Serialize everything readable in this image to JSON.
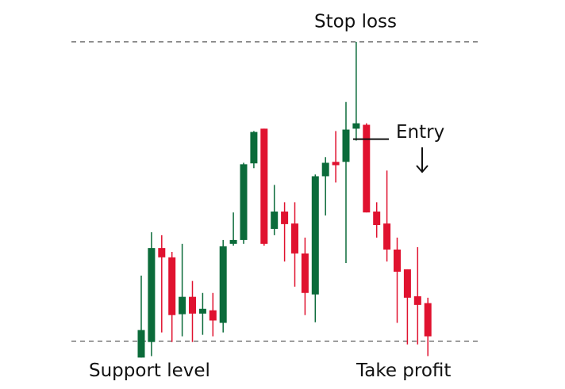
{
  "chart_data": {
    "type": "candlestick",
    "open": [
      -5.5,
      -0.3,
      31.1,
      28.0,
      9.0,
      14.8,
      9.2,
      10.3,
      6.1,
      32.5,
      33.8,
      59.4,
      71.0,
      37.5,
      43.3,
      39.3,
      29.3,
      15.6,
      55.1,
      59.9,
      59.9,
      71.0,
      72.3,
      43.3,
      39.3,
      30.6,
      24.0,
      15.0,
      12.7
    ],
    "high": [
      21.9,
      36.4,
      35.4,
      29.8,
      32.5,
      20.1,
      16.1,
      16.1,
      33.8,
      43.0,
      59.6,
      70.2,
      71.0,
      52.2,
      46.4,
      46.4,
      34.6,
      55.7,
      61.5,
      70.2,
      79.9,
      100,
      72.8,
      46.4,
      57.0,
      34.6,
      24.0,
      31.4,
      14.5
    ],
    "low": [
      -5.5,
      -5.0,
      2.9,
      -0.3,
      1.6,
      -0.3,
      2.1,
      1.6,
      2.9,
      31.9,
      32.5,
      57.8,
      31.9,
      35.4,
      26.6,
      18.2,
      8.7,
      6.3,
      42.0,
      53.0,
      26.1,
      67.0,
      43.0,
      34.6,
      26.6,
      6.1,
      -1.1,
      -1.1,
      -5.0
    ],
    "close": [
      3.7,
      31.1,
      28.0,
      8.7,
      14.8,
      9.2,
      10.8,
      6.9,
      31.7,
      33.8,
      59.1,
      69.9,
      32.5,
      43.3,
      39.1,
      29.3,
      16.1,
      55.1,
      59.6,
      58.8,
      70.7,
      72.8,
      43.0,
      38.8,
      30.6,
      23.2,
      14.5,
      12.1,
      1.6
    ],
    "up_color": "#0b6b3a",
    "down_color": "#e0122f",
    "ylim": [
      -16,
      114
    ],
    "hlines": [
      {
        "value": 100,
        "labels": [
          "Stop loss"
        ]
      },
      {
        "value": 0,
        "labels": [
          "Support level",
          "Take profit"
        ]
      }
    ],
    "entry": {
      "label": "Entry",
      "value": 67.5
    }
  }
}
